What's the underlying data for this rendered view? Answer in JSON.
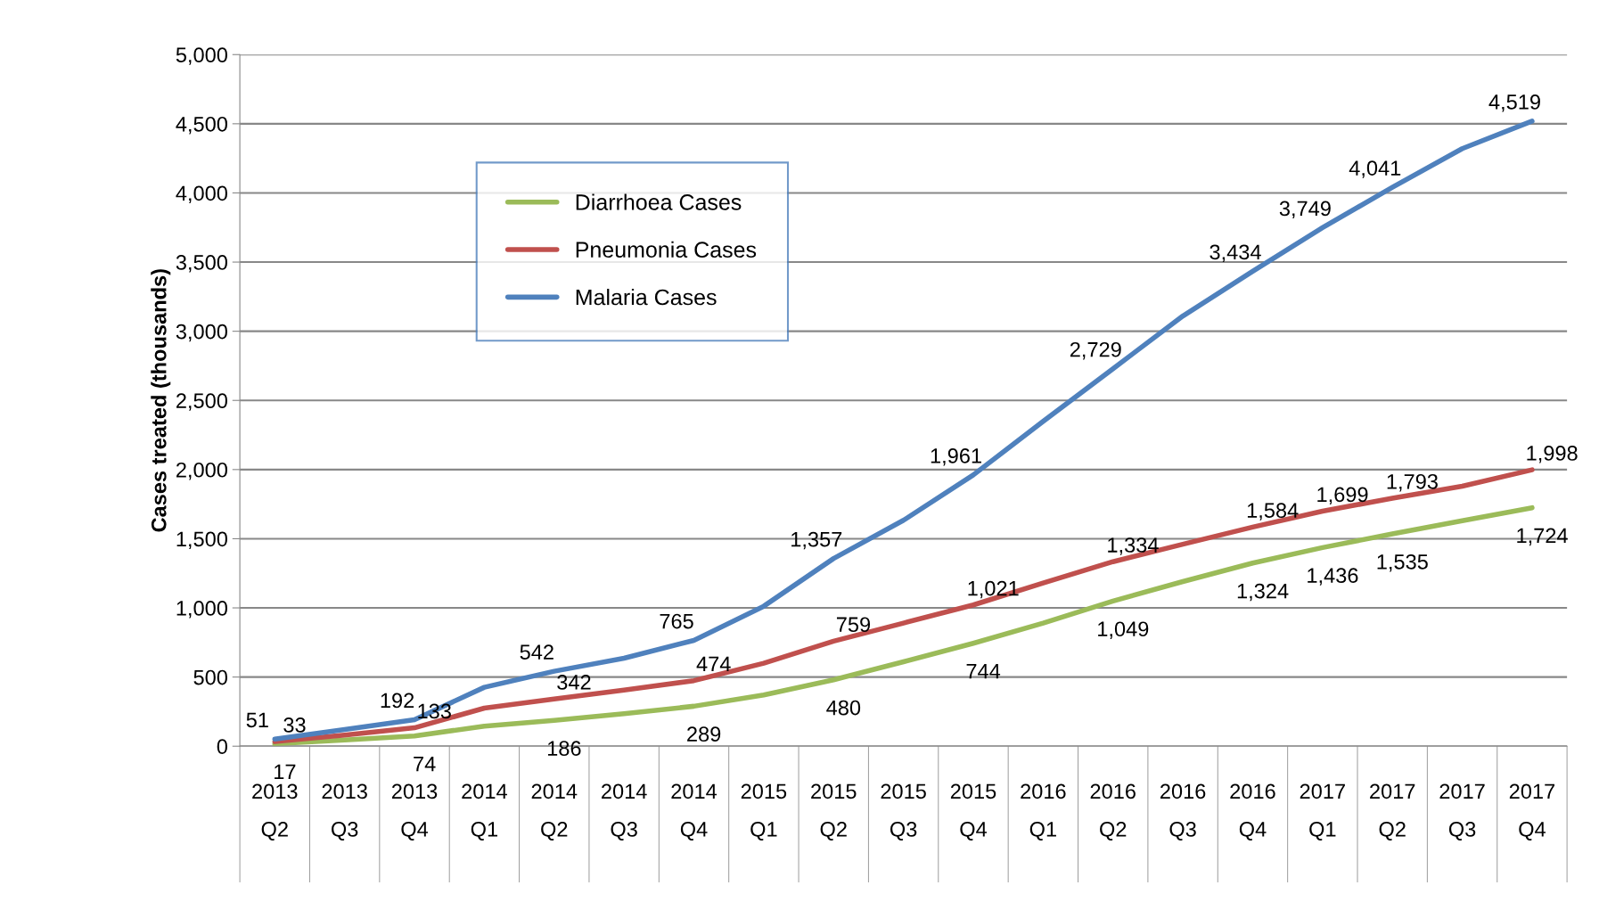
{
  "chart_data": {
    "type": "line",
    "ylabel": "Cases treated (thousands)",
    "categories": [
      "2013\nQ2",
      "2013\nQ3",
      "2013\nQ4",
      "2014\nQ1",
      "2014\nQ2",
      "2014\nQ3",
      "2014\nQ4",
      "2015\nQ1",
      "2015\nQ2",
      "2015\nQ3",
      "2015\nQ4",
      "2016\nQ1",
      "2016\nQ2",
      "2016\nQ3",
      "2016\nQ4",
      "2017\nQ1",
      "2017\nQ2",
      "2017\nQ3",
      "2017\nQ4"
    ],
    "series": [
      {
        "name": "Diarrhoea Cases",
        "color": "#9bbb59",
        "values": [
          17,
          45,
          74,
          145,
          186,
          235,
          289,
          370,
          480,
          610,
          744,
          890,
          1049,
          1190,
          1324,
          1436,
          1535,
          1630,
          1724
        ],
        "value_labels": [
          "17",
          null,
          "74",
          null,
          "186",
          null,
          "289",
          null,
          "480",
          null,
          "744",
          null,
          "1,049",
          null,
          "1,324",
          "1,436",
          "1,535",
          null,
          "1,724"
        ]
      },
      {
        "name": "Pneumonia Cases",
        "color": "#c0504d",
        "values": [
          33,
          80,
          133,
          275,
          342,
          405,
          474,
          600,
          759,
          890,
          1021,
          1180,
          1334,
          1460,
          1584,
          1699,
          1793,
          1880,
          1998
        ],
        "value_labels": [
          "33",
          null,
          "133",
          null,
          "342",
          null,
          "474",
          null,
          "759",
          null,
          "1,021",
          null,
          "1,334",
          null,
          "1,584",
          "1,699",
          "1,793",
          null,
          "1,998"
        ]
      },
      {
        "name": "Malaria Cases",
        "color": "#4f81bd",
        "values": [
          51,
          120,
          192,
          426,
          542,
          636,
          765,
          1012,
          1357,
          1633,
          1961,
          2348,
          2729,
          3110,
          3434,
          3749,
          4041,
          4320,
          4519
        ],
        "value_labels": [
          "51",
          null,
          "192",
          null,
          "542",
          null,
          "765",
          null,
          "1,357",
          null,
          "1,961",
          null,
          "2,729",
          null,
          "3,434",
          "3,749",
          "4,041",
          null,
          "4,519"
        ]
      }
    ],
    "ylim": [
      0,
      5000
    ],
    "yticks": [
      {
        "value": 0,
        "label": "0"
      },
      {
        "value": 500,
        "label": "500"
      },
      {
        "value": 1000,
        "label": "1,000"
      },
      {
        "value": 1500,
        "label": "1,500"
      },
      {
        "value": 2000,
        "label": "2,000"
      },
      {
        "value": 2500,
        "label": "2,500"
      },
      {
        "value": 3000,
        "label": "3,000"
      },
      {
        "value": 3500,
        "label": "3,500"
      },
      {
        "value": 4000,
        "label": "4,000"
      },
      {
        "value": 4500,
        "label": "4,500"
      },
      {
        "value": 5000,
        "label": "5,000"
      }
    ],
    "grid": "y",
    "legend": "top left",
    "marker": "none",
    "line_style": "solid"
  }
}
